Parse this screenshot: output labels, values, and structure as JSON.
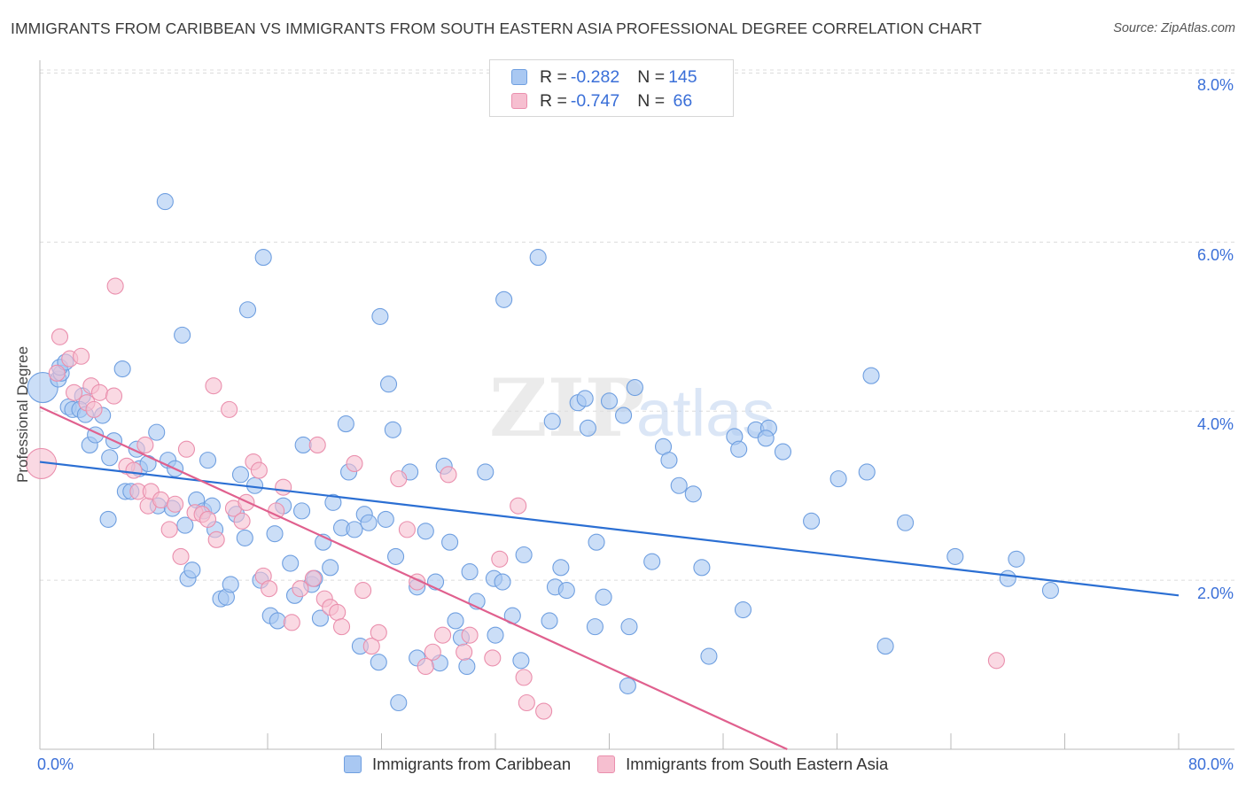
{
  "title": "IMMIGRANTS FROM CARIBBEAN VS IMMIGRANTS FROM SOUTH EASTERN ASIA PROFESSIONAL DEGREE CORRELATION CHART",
  "source": "Source: ZipAtlas.com",
  "watermark": "ZIPatlas",
  "colors": {
    "blue_fill": "#a9c8f2",
    "blue_stroke": "#6f9fe0",
    "blue_line": "#2b6fd3",
    "pink_fill": "#f6bfd0",
    "pink_stroke": "#ea8fad",
    "pink_line": "#e0608e",
    "axis_text": "#3a6fd8",
    "grid": "#dcdcdc"
  },
  "legend": {
    "rows": [
      {
        "r_label": "R = ",
        "r_value": "-0.282",
        "n_label": "N = ",
        "n_value": "145"
      },
      {
        "r_label": "R = ",
        "r_value": "-0.747",
        "n_label": "N = ",
        "n_value": " 66"
      }
    ]
  },
  "bottom_legend": [
    "Immigrants from Caribbean",
    "Immigrants from South Eastern Asia"
  ],
  "chart_data": {
    "type": "scatter",
    "xlabel": "",
    "ylabel": "Professional Degree",
    "xlim": [
      0,
      80
    ],
    "ylim": [
      0,
      8.1
    ],
    "x_tick_labels": [
      "0.0%",
      "80.0%"
    ],
    "y_ticks": [
      2,
      4,
      6,
      8
    ],
    "y_tick_labels": [
      "2.0%",
      "4.0%",
      "6.0%",
      "8.0%"
    ],
    "grid": "horizontal dashed",
    "legend_placement": "top-center",
    "series": [
      {
        "name": "Immigrants from Caribbean",
        "color": "#a9c8f2",
        "trend": {
          "x": [
            0,
            80
          ],
          "y": [
            3.4,
            1.82
          ]
        },
        "points": [
          [
            0.2,
            4.28
          ],
          [
            1.3,
            4.38
          ],
          [
            1.5,
            4.45
          ],
          [
            1.4,
            4.52
          ],
          [
            1.8,
            4.58
          ],
          [
            2.0,
            4.05
          ],
          [
            2.3,
            4.02
          ],
          [
            3.0,
            4.18
          ],
          [
            2.8,
            4.02
          ],
          [
            3.2,
            3.96
          ],
          [
            3.5,
            3.6
          ],
          [
            4.4,
            3.95
          ],
          [
            3.9,
            3.72
          ],
          [
            5.2,
            3.65
          ],
          [
            5.8,
            4.5
          ],
          [
            6.0,
            3.05
          ],
          [
            4.9,
            3.45
          ],
          [
            4.8,
            2.72
          ],
          [
            6.4,
            3.05
          ],
          [
            6.8,
            3.55
          ],
          [
            7.0,
            3.32
          ],
          [
            7.6,
            3.38
          ],
          [
            8.2,
            3.75
          ],
          [
            8.3,
            2.88
          ],
          [
            8.8,
            6.48
          ],
          [
            9.0,
            3.42
          ],
          [
            9.3,
            2.85
          ],
          [
            9.5,
            3.32
          ],
          [
            10.0,
            4.9
          ],
          [
            10.2,
            2.65
          ],
          [
            10.4,
            2.02
          ],
          [
            10.7,
            2.12
          ],
          [
            11.0,
            2.95
          ],
          [
            11.5,
            2.82
          ],
          [
            11.8,
            3.42
          ],
          [
            12.1,
            2.88
          ],
          [
            12.3,
            2.6
          ],
          [
            12.7,
            1.78
          ],
          [
            13.1,
            1.8
          ],
          [
            13.4,
            1.95
          ],
          [
            13.8,
            2.78
          ],
          [
            14.1,
            3.25
          ],
          [
            14.4,
            2.5
          ],
          [
            14.6,
            5.2
          ],
          [
            15.1,
            3.12
          ],
          [
            15.5,
            2.0
          ],
          [
            15.7,
            5.82
          ],
          [
            16.2,
            1.58
          ],
          [
            16.5,
            2.55
          ],
          [
            16.7,
            1.52
          ],
          [
            17.1,
            2.88
          ],
          [
            17.6,
            2.2
          ],
          [
            17.9,
            1.82
          ],
          [
            18.4,
            2.82
          ],
          [
            18.5,
            3.6
          ],
          [
            19.1,
            1.95
          ],
          [
            19.3,
            2.02
          ],
          [
            19.7,
            1.55
          ],
          [
            19.9,
            2.45
          ],
          [
            20.4,
            2.15
          ],
          [
            20.6,
            2.92
          ],
          [
            21.2,
            2.62
          ],
          [
            21.5,
            3.85
          ],
          [
            21.7,
            3.28
          ],
          [
            22.1,
            2.6
          ],
          [
            22.5,
            1.22
          ],
          [
            22.8,
            2.78
          ],
          [
            23.1,
            2.68
          ],
          [
            23.8,
            1.03
          ],
          [
            23.9,
            5.12
          ],
          [
            24.3,
            2.72
          ],
          [
            24.5,
            4.32
          ],
          [
            24.8,
            3.78
          ],
          [
            25.0,
            2.28
          ],
          [
            25.2,
            0.55
          ],
          [
            26.0,
            3.28
          ],
          [
            26.5,
            1.92
          ],
          [
            26.5,
            1.08
          ],
          [
            27.1,
            2.58
          ],
          [
            27.8,
            1.98
          ],
          [
            28.1,
            1.02
          ],
          [
            28.4,
            3.35
          ],
          [
            28.8,
            2.45
          ],
          [
            29.2,
            1.52
          ],
          [
            29.6,
            1.32
          ],
          [
            30.0,
            0.98
          ],
          [
            30.2,
            2.1
          ],
          [
            30.7,
            1.75
          ],
          [
            31.3,
            3.28
          ],
          [
            31.9,
            2.02
          ],
          [
            32.5,
            1.98
          ],
          [
            32.0,
            1.35
          ],
          [
            33.2,
            1.58
          ],
          [
            33.8,
            1.05
          ],
          [
            34.0,
            2.3
          ],
          [
            32.6,
            5.32
          ],
          [
            35.0,
            5.82
          ],
          [
            35.8,
            1.52
          ],
          [
            36.0,
            3.88
          ],
          [
            36.2,
            1.92
          ],
          [
            36.6,
            2.15
          ],
          [
            37.0,
            1.88
          ],
          [
            37.8,
            4.1
          ],
          [
            38.3,
            4.15
          ],
          [
            38.5,
            3.8
          ],
          [
            39.1,
            2.45
          ],
          [
            39.0,
            1.45
          ],
          [
            39.6,
            1.8
          ],
          [
            40.0,
            4.12
          ],
          [
            41.0,
            3.95
          ],
          [
            41.4,
            1.45
          ],
          [
            41.3,
            0.75
          ],
          [
            41.8,
            4.28
          ],
          [
            43.0,
            2.22
          ],
          [
            43.8,
            3.58
          ],
          [
            44.2,
            3.42
          ],
          [
            44.9,
            3.12
          ],
          [
            45.9,
            3.02
          ],
          [
            46.5,
            2.15
          ],
          [
            47.0,
            1.1
          ],
          [
            48.8,
            3.7
          ],
          [
            49.1,
            3.55
          ],
          [
            49.4,
            1.65
          ],
          [
            50.3,
            3.78
          ],
          [
            51.2,
            3.8
          ],
          [
            51.0,
            3.68
          ],
          [
            52.2,
            3.52
          ],
          [
            54.2,
            2.7
          ],
          [
            56.1,
            3.2
          ],
          [
            58.1,
            3.28
          ],
          [
            58.4,
            4.42
          ],
          [
            59.4,
            1.22
          ],
          [
            60.8,
            2.68
          ],
          [
            64.3,
            2.28
          ],
          [
            68.0,
            2.02
          ],
          [
            68.6,
            2.25
          ],
          [
            71.0,
            1.88
          ]
        ]
      },
      {
        "name": "Immigrants from South Eastern Asia",
        "color": "#f6bfd0",
        "trend": {
          "x": [
            0,
            52.5
          ],
          "y": [
            4.05,
            0.0
          ]
        },
        "points": [
          [
            0.1,
            3.38
          ],
          [
            1.2,
            4.45
          ],
          [
            1.4,
            4.88
          ],
          [
            2.1,
            4.62
          ],
          [
            2.4,
            4.22
          ],
          [
            2.9,
            4.65
          ],
          [
            3.3,
            4.1
          ],
          [
            3.6,
            4.3
          ],
          [
            3.8,
            4.02
          ],
          [
            4.2,
            4.22
          ],
          [
            5.2,
            4.18
          ],
          [
            5.3,
            5.48
          ],
          [
            6.1,
            3.35
          ],
          [
            6.6,
            3.3
          ],
          [
            6.9,
            3.05
          ],
          [
            7.4,
            3.6
          ],
          [
            7.6,
            2.88
          ],
          [
            7.8,
            3.05
          ],
          [
            8.5,
            2.95
          ],
          [
            9.1,
            2.6
          ],
          [
            9.5,
            2.9
          ],
          [
            9.9,
            2.28
          ],
          [
            10.3,
            3.55
          ],
          [
            10.9,
            2.8
          ],
          [
            11.4,
            2.78
          ],
          [
            11.8,
            2.72
          ],
          [
            12.2,
            4.3
          ],
          [
            12.4,
            2.48
          ],
          [
            13.3,
            4.02
          ],
          [
            13.6,
            2.85
          ],
          [
            14.2,
            2.7
          ],
          [
            14.5,
            2.92
          ],
          [
            15.0,
            3.4
          ],
          [
            15.4,
            3.3
          ],
          [
            15.7,
            2.05
          ],
          [
            16.1,
            1.9
          ],
          [
            16.6,
            2.82
          ],
          [
            17.1,
            3.1
          ],
          [
            17.7,
            1.5
          ],
          [
            18.3,
            1.9
          ],
          [
            19.2,
            2.02
          ],
          [
            19.5,
            3.6
          ],
          [
            20.0,
            1.78
          ],
          [
            20.4,
            1.68
          ],
          [
            20.9,
            1.62
          ],
          [
            21.2,
            1.45
          ],
          [
            22.1,
            3.38
          ],
          [
            22.7,
            1.88
          ],
          [
            23.3,
            1.22
          ],
          [
            23.8,
            1.38
          ],
          [
            25.2,
            3.2
          ],
          [
            25.8,
            2.6
          ],
          [
            26.5,
            1.98
          ],
          [
            27.1,
            0.98
          ],
          [
            27.6,
            1.15
          ],
          [
            28.3,
            1.35
          ],
          [
            28.7,
            3.25
          ],
          [
            29.8,
            1.15
          ],
          [
            30.2,
            1.35
          ],
          [
            31.8,
            1.08
          ],
          [
            32.3,
            2.25
          ],
          [
            33.6,
            2.88
          ],
          [
            34.0,
            0.85
          ],
          [
            34.2,
            0.55
          ],
          [
            35.4,
            0.45
          ],
          [
            67.2,
            1.05
          ]
        ]
      }
    ]
  }
}
